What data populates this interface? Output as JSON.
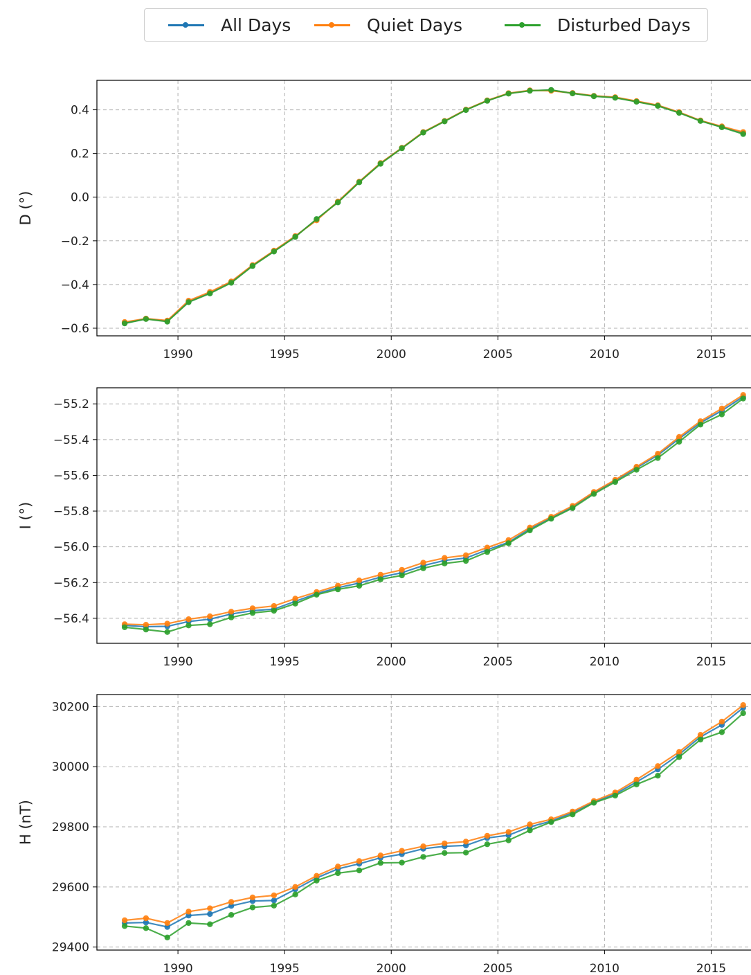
{
  "legend": {
    "placement": "top-center",
    "items": [
      {
        "label": "All Days",
        "color": "#1f77b4"
      },
      {
        "label": "Quiet Days",
        "color": "#ff7f0e"
      },
      {
        "label": "Disturbed Days",
        "color": "#2ca02c"
      }
    ]
  },
  "chart_data": [
    {
      "type": "line",
      "ylabel": "D (°)",
      "grid": true,
      "xlim": [
        1986.2,
        2016.9
      ],
      "ylim": [
        -0.635,
        0.535
      ],
      "xticks": [
        1990,
        1995,
        2000,
        2005,
        2010,
        2015
      ],
      "yticks": [
        -0.6,
        -0.4,
        -0.2,
        0.0,
        0.2,
        0.4
      ],
      "ytick_labels": [
        "−0.6",
        "−0.4",
        "−0.2",
        "0.0",
        "0.2",
        "0.4"
      ],
      "x": [
        1987.5,
        1988.5,
        1989.5,
        1990.5,
        1991.5,
        1992.5,
        1993.5,
        1994.5,
        1995.5,
        1996.5,
        1997.5,
        1998.5,
        1999.5,
        2000.5,
        2001.5,
        2002.5,
        2003.5,
        2004.5,
        2005.5,
        2006.5,
        2007.5,
        2008.5,
        2009.5,
        2010.5,
        2011.5,
        2012.5,
        2013.5,
        2014.5,
        2015.5,
        2016.5
      ],
      "series": [
        {
          "name": "All Days",
          "values": [
            -0.576,
            -0.557,
            -0.567,
            -0.478,
            -0.438,
            -0.389,
            -0.313,
            -0.247,
            -0.18,
            -0.102,
            -0.022,
            0.07,
            0.155,
            0.225,
            0.297,
            0.348,
            0.4,
            0.442,
            0.475,
            0.488,
            0.49,
            0.476,
            0.463,
            0.456,
            0.438,
            0.42,
            0.388,
            0.35,
            0.322,
            0.293
          ]
        },
        {
          "name": "Quiet Days",
          "values": [
            -0.572,
            -0.556,
            -0.565,
            -0.474,
            -0.434,
            -0.386,
            -0.311,
            -0.245,
            -0.178,
            -0.106,
            -0.02,
            0.071,
            0.156,
            0.226,
            0.298,
            0.349,
            0.401,
            0.443,
            0.476,
            0.489,
            0.487,
            0.477,
            0.464,
            0.458,
            0.44,
            0.421,
            0.389,
            0.351,
            0.324,
            0.298
          ]
        },
        {
          "name": "Disturbed Days",
          "values": [
            -0.578,
            -0.558,
            -0.57,
            -0.481,
            -0.441,
            -0.392,
            -0.315,
            -0.249,
            -0.182,
            -0.1,
            -0.024,
            0.068,
            0.153,
            0.224,
            0.296,
            0.347,
            0.399,
            0.441,
            0.474,
            0.487,
            0.491,
            0.475,
            0.462,
            0.455,
            0.437,
            0.418,
            0.386,
            0.349,
            0.32,
            0.289
          ]
        }
      ]
    },
    {
      "type": "line",
      "ylabel": "I (°)",
      "grid": true,
      "xlim": [
        1986.2,
        2016.9
      ],
      "ylim": [
        -56.54,
        -55.11
      ],
      "xticks": [
        1990,
        1995,
        2000,
        2005,
        2010,
        2015
      ],
      "yticks": [
        -56.4,
        -56.2,
        -56.0,
        -55.8,
        -55.6,
        -55.4,
        -55.2
      ],
      "ytick_labels": [
        "−56.4",
        "−56.2",
        "−56.0",
        "−55.8",
        "−55.6",
        "−55.4",
        "−55.2"
      ],
      "x": [
        1987.5,
        1988.5,
        1989.5,
        1990.5,
        1991.5,
        1992.5,
        1993.5,
        1994.5,
        1995.5,
        1996.5,
        1997.5,
        1998.5,
        1999.5,
        2000.5,
        2001.5,
        2002.5,
        2003.5,
        2004.5,
        2005.5,
        2006.5,
        2007.5,
        2008.5,
        2009.5,
        2010.5,
        2011.5,
        2012.5,
        2013.5,
        2014.5,
        2015.5,
        2016.5
      ],
      "series": [
        {
          "name": "All Days",
          "values": [
            -56.44,
            -56.447,
            -56.445,
            -56.418,
            -56.405,
            -56.376,
            -56.357,
            -56.349,
            -56.305,
            -56.262,
            -56.229,
            -56.203,
            -56.17,
            -56.145,
            -56.105,
            -56.076,
            -56.063,
            -56.017,
            -55.975,
            -55.9,
            -55.838,
            -55.777,
            -55.697,
            -55.63,
            -55.558,
            -55.487,
            -55.395,
            -55.306,
            -55.238,
            -55.16
          ]
        },
        {
          "name": "Quiet Days",
          "values": [
            -56.433,
            -56.436,
            -56.43,
            -56.405,
            -56.389,
            -56.363,
            -56.344,
            -56.331,
            -56.29,
            -56.253,
            -56.217,
            -56.188,
            -56.156,
            -56.129,
            -56.089,
            -56.062,
            -56.047,
            -56.004,
            -55.962,
            -55.892,
            -55.832,
            -55.771,
            -55.693,
            -55.625,
            -55.552,
            -55.479,
            -55.385,
            -55.297,
            -55.226,
            -55.15
          ]
        },
        {
          "name": "Disturbed Days",
          "values": [
            -56.45,
            -56.463,
            -56.477,
            -56.44,
            -56.433,
            -56.395,
            -56.37,
            -56.358,
            -56.318,
            -56.268,
            -56.238,
            -56.218,
            -56.182,
            -56.16,
            -56.12,
            -56.093,
            -56.079,
            -56.029,
            -55.98,
            -55.908,
            -55.843,
            -55.783,
            -55.704,
            -55.637,
            -55.569,
            -55.503,
            -55.412,
            -55.316,
            -55.259,
            -55.17
          ]
        }
      ]
    },
    {
      "type": "line",
      "ylabel": "H (nT)",
      "grid": true,
      "xlim": [
        1986.2,
        2016.9
      ],
      "ylim": [
        29390,
        30240
      ],
      "xticks": [
        1990,
        1995,
        2000,
        2005,
        2010,
        2015
      ],
      "yticks": [
        29400,
        29600,
        29800,
        30000,
        30200
      ],
      "ytick_labels": [
        "29400",
        "29600",
        "29800",
        "30000",
        "30200"
      ],
      "x": [
        1987.5,
        1988.5,
        1989.5,
        1990.5,
        1991.5,
        1992.5,
        1993.5,
        1994.5,
        1995.5,
        1996.5,
        1997.5,
        1998.5,
        1999.5,
        2000.5,
        2001.5,
        2002.5,
        2003.5,
        2004.5,
        2005.5,
        2006.5,
        2007.5,
        2008.5,
        2009.5,
        2010.5,
        2011.5,
        2012.5,
        2013.5,
        2014.5,
        2015.5,
        2016.5
      ],
      "series": [
        {
          "name": "All Days",
          "values": [
            29480,
            29482,
            29467,
            29505,
            29510,
            29537,
            29553,
            29555,
            29592,
            29630,
            29660,
            29677,
            29697,
            29709,
            29727,
            29735,
            29738,
            29763,
            29772,
            29800,
            29819,
            29847,
            29882,
            29909,
            29949,
            29991,
            30041,
            30099,
            30139,
            30196
          ]
        },
        {
          "name": "Quiet Days",
          "values": [
            29489,
            29496,
            29480,
            29518,
            29529,
            29550,
            29565,
            29572,
            29600,
            29637,
            29668,
            29686,
            29705,
            29720,
            29735,
            29745,
            29751,
            29770,
            29783,
            29808,
            29825,
            29851,
            29886,
            29914,
            29957,
            30002,
            30049,
            30106,
            30150,
            30205
          ]
        },
        {
          "name": "Disturbed Days",
          "values": [
            29470,
            29463,
            29432,
            29480,
            29476,
            29507,
            29532,
            29538,
            29575,
            29621,
            29646,
            29655,
            29680,
            29681,
            29700,
            29713,
            29714,
            29742,
            29755,
            29788,
            29816,
            29841,
            29880,
            29904,
            29941,
            29970,
            30032,
            30090,
            30115,
            30178
          ]
        }
      ]
    }
  ]
}
